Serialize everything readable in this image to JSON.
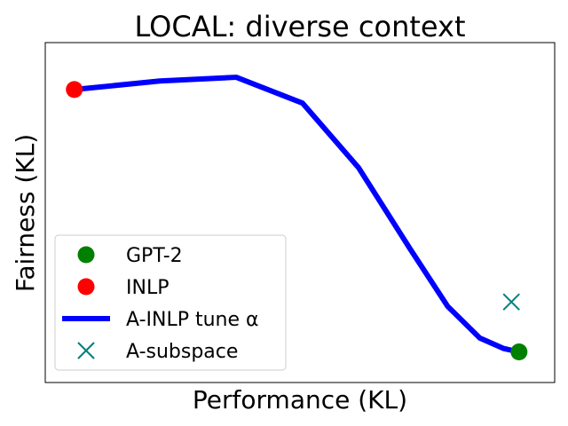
{
  "chart_data": {
    "type": "line",
    "title": "LOCAL: diverse context",
    "xlabel": "Performance (KL)",
    "ylabel": "Fairness (KL)",
    "xticks": [],
    "yticks": [],
    "xlim": [
      0,
      1
    ],
    "ylim": [
      0,
      1
    ],
    "grid": false,
    "legend_position": "lower-left",
    "series": [
      {
        "name": "GPT-2",
        "type": "scatter",
        "marker": "circle",
        "color": "#008000",
        "points": [
          [
            0.93,
            0.09
          ]
        ]
      },
      {
        "name": "INLP",
        "type": "scatter",
        "marker": "circle",
        "color": "#ff0000",
        "points": [
          [
            0.057,
            0.862
          ]
        ]
      },
      {
        "name": "A-INLP tune α",
        "type": "line",
        "color": "#0000ff",
        "points": [
          [
            0.057,
            0.862
          ],
          [
            0.225,
            0.887
          ],
          [
            0.375,
            0.898
          ],
          [
            0.505,
            0.822
          ],
          [
            0.615,
            0.632
          ],
          [
            0.715,
            0.396
          ],
          [
            0.79,
            0.224
          ],
          [
            0.853,
            0.131
          ],
          [
            0.9,
            0.1
          ],
          [
            0.93,
            0.09
          ]
        ]
      },
      {
        "name": "A-subspace",
        "type": "scatter",
        "marker": "x",
        "color": "#008080",
        "points": [
          [
            0.915,
            0.237
          ]
        ]
      }
    ]
  }
}
